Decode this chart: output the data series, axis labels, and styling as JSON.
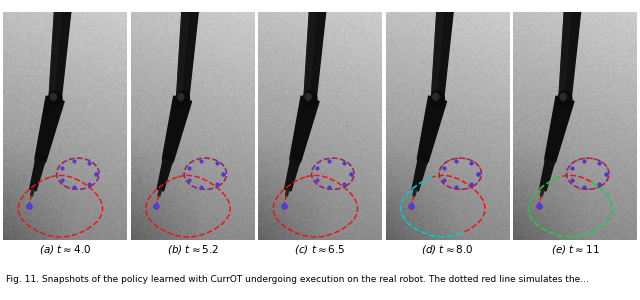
{
  "subcaptions": [
    "(a) $t \\approx 4.0$",
    "(b) $t \\approx 5.2$",
    "(c) $t \\approx 6.5$",
    "(d) $t \\approx 8.0$",
    "(e) $t \\approx 11$"
  ],
  "figure_caption": "Fig. 11. Snapshots of the policy learned with CurrOT undergoing execution on the real robot. The dotted red line simulates the...",
  "n_panels": 5,
  "bg_color": "#ffffff",
  "subcaption_fontsize": 7.5,
  "caption_fontsize": 6.5,
  "figure_width": 6.4,
  "figure_height": 3.0,
  "dpi": 100
}
